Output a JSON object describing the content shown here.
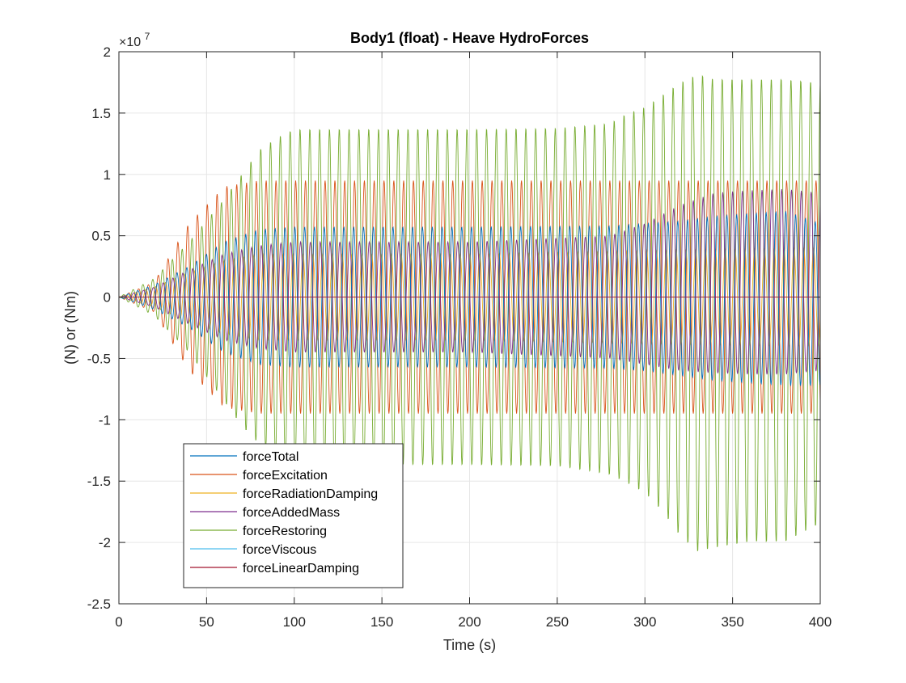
{
  "chart_data": {
    "type": "line",
    "title": "Body1 (float) - Heave HydroForces",
    "xlabel": "Time (s)",
    "ylabel": "(N) or (Nm)",
    "y_exponent_label": "×10",
    "y_exponent_power": "7",
    "xlim": [
      0,
      400
    ],
    "ylim": [
      -2.5,
      2
    ],
    "x_ticks": [
      0,
      50,
      100,
      150,
      200,
      250,
      300,
      350,
      400
    ],
    "x_tick_labels": [
      "0",
      "50",
      "100",
      "150",
      "200",
      "250",
      "300",
      "350",
      "400"
    ],
    "y_ticks": [
      -2.5,
      -2,
      -1.5,
      -1,
      -0.5,
      0,
      0.5,
      1,
      1.5,
      2
    ],
    "y_tick_labels": [
      "-2.5",
      "-2",
      "-1.5",
      "-1",
      "-0.5",
      "0",
      "0.5",
      "1",
      "1.5",
      "2"
    ],
    "grid": true,
    "legend_position": "bottom-left",
    "wave_period_s": 5.6,
    "series": [
      {
        "name": "forceTotal",
        "color": "#0072BD",
        "envelope": {
          "t": [
            0,
            20,
            40,
            60,
            80,
            100,
            200,
            280,
            300,
            320,
            340,
            360,
            380,
            400
          ],
          "pos": [
            0,
            0.1,
            0.25,
            0.45,
            0.55,
            0.57,
            0.57,
            0.58,
            0.6,
            0.62,
            0.66,
            0.68,
            0.7,
            0.6
          ],
          "neg": [
            0,
            -0.1,
            -0.25,
            -0.45,
            -0.55,
            -0.57,
            -0.57,
            -0.58,
            -0.6,
            -0.64,
            -0.68,
            -0.7,
            -0.72,
            -0.72
          ]
        },
        "phase_deg": 30
      },
      {
        "name": "forceExcitation",
        "color": "#D95319",
        "envelope": {
          "t": [
            0,
            20,
            40,
            60,
            80,
            100,
            200,
            300,
            400
          ],
          "pos": [
            0,
            0.12,
            0.6,
            0.9,
            0.95,
            0.95,
            0.95,
            0.95,
            0.95
          ],
          "neg": [
            0,
            -0.12,
            -0.6,
            -0.9,
            -0.95,
            -0.95,
            -0.95,
            -0.95,
            -0.95
          ]
        },
        "phase_deg": 0
      },
      {
        "name": "forceRadiationDamping",
        "color": "#EDB120",
        "envelope": {
          "t": [
            0,
            20,
            40,
            60,
            80,
            100,
            200,
            300,
            400
          ],
          "pos": [
            0,
            0.08,
            0.2,
            0.3,
            0.35,
            0.35,
            0.35,
            0.38,
            0.4
          ],
          "neg": [
            0,
            -0.08,
            -0.2,
            -0.3,
            -0.35,
            -0.35,
            -0.35,
            -0.38,
            -0.4
          ]
        },
        "phase_deg": 90
      },
      {
        "name": "forceAddedMass",
        "color": "#7E2F8E",
        "envelope": {
          "t": [
            0,
            20,
            40,
            60,
            80,
            100,
            200,
            280,
            300,
            320,
            340,
            360,
            380,
            400
          ],
          "pos": [
            0,
            0.08,
            0.22,
            0.35,
            0.42,
            0.45,
            0.45,
            0.5,
            0.6,
            0.75,
            0.85,
            0.87,
            0.88,
            0.85
          ],
          "neg": [
            0,
            -0.08,
            -0.22,
            -0.35,
            -0.42,
            -0.45,
            -0.45,
            -0.5,
            -0.55,
            -0.6,
            -0.62,
            -0.63,
            -0.63,
            -0.6
          ]
        },
        "phase_deg": 180
      },
      {
        "name": "forceRestoring",
        "color": "#77AC30",
        "envelope": {
          "t": [
            0,
            20,
            40,
            60,
            70,
            80,
            90,
            100,
            150,
            200,
            250,
            280,
            290,
            300,
            310,
            320,
            330,
            340,
            360,
            380,
            400
          ],
          "pos": [
            0,
            0.15,
            0.45,
            0.8,
            1.0,
            1.2,
            1.3,
            1.37,
            1.37,
            1.37,
            1.38,
            1.42,
            1.5,
            1.55,
            1.65,
            1.75,
            1.82,
            1.78,
            1.78,
            1.78,
            1.75
          ],
          "neg": [
            0,
            -0.15,
            -0.45,
            -0.85,
            -1.05,
            -1.2,
            -1.3,
            -1.37,
            -1.37,
            -1.37,
            -1.38,
            -1.45,
            -1.52,
            -1.6,
            -1.75,
            -1.95,
            -2.08,
            -2.05,
            -2.0,
            -2.0,
            -1.85
          ]
        },
        "phase_deg": 200
      },
      {
        "name": "forceViscous",
        "color": "#4DBEEE",
        "envelope": {
          "t": [
            0,
            400
          ],
          "pos": [
            0,
            0
          ],
          "neg": [
            0,
            0
          ]
        },
        "phase_deg": 0
      },
      {
        "name": "forceLinearDamping",
        "color": "#A2142F",
        "envelope": {
          "t": [
            0,
            400
          ],
          "pos": [
            0,
            0
          ],
          "neg": [
            0,
            0
          ]
        },
        "phase_deg": 0
      }
    ]
  }
}
